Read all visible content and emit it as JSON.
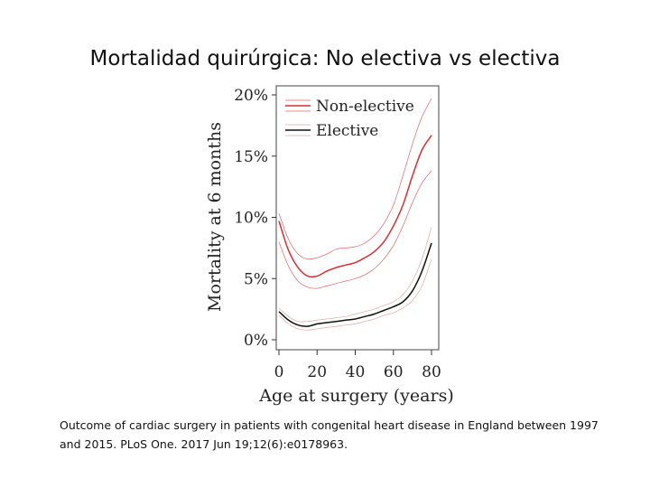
{
  "slide": {
    "title": "Mortalidad quirúrgica: No electiva vs electiva",
    "caption_line1": "Outcome of cardiac surgery in patients with congenital heart disease in England between 1997",
    "caption_line2": "and 2015. PLoS One. 2017 Jun 19;12(6):e0178963."
  },
  "chart_data": {
    "type": "line",
    "title": "",
    "xlabel": "Age at surgery (years)",
    "ylabel": "Mortality at 6 months",
    "xlim": [
      0,
      82
    ],
    "ylim": [
      0,
      20
    ],
    "xticks": [
      0,
      20,
      40,
      60,
      80
    ],
    "yticks": [
      0,
      5,
      10,
      15,
      20
    ],
    "ytick_labels": [
      "0%",
      "5%",
      "10%",
      "15%",
      "20%"
    ],
    "legend": {
      "position": "top-left",
      "labels": [
        "Non-elective",
        "Elective"
      ]
    },
    "series": [
      {
        "name": "Non-elective",
        "color": "#d93030",
        "x": [
          0,
          5,
          10,
          15,
          20,
          25,
          30,
          35,
          40,
          45,
          50,
          55,
          60,
          65,
          70,
          75,
          80
        ],
        "values": [
          9.7,
          7.3,
          5.9,
          5.2,
          5.2,
          5.6,
          5.9,
          6.1,
          6.3,
          6.7,
          7.2,
          8.0,
          9.3,
          11.0,
          13.4,
          15.5,
          16.7
        ],
        "lower": [
          8.0,
          6.0,
          4.8,
          4.3,
          4.2,
          4.4,
          4.6,
          4.8,
          5.0,
          5.3,
          5.8,
          6.6,
          7.7,
          9.3,
          11.2,
          12.8,
          13.8
        ],
        "upper": [
          10.3,
          8.2,
          7.0,
          6.6,
          6.7,
          7.0,
          7.4,
          7.5,
          7.6,
          7.9,
          8.5,
          9.5,
          11.0,
          13.4,
          16.0,
          18.2,
          19.7
        ]
      },
      {
        "name": "Elective",
        "color": "#111111",
        "band_color": "#d98a8a",
        "x": [
          0,
          5,
          10,
          15,
          20,
          25,
          30,
          35,
          40,
          45,
          50,
          55,
          60,
          65,
          70,
          75,
          80
        ],
        "values": [
          2.3,
          1.6,
          1.2,
          1.1,
          1.3,
          1.4,
          1.5,
          1.6,
          1.7,
          1.9,
          2.1,
          2.4,
          2.7,
          3.1,
          4.0,
          5.6,
          7.9
        ],
        "lower": [
          2.0,
          1.3,
          0.9,
          0.8,
          0.9,
          1.0,
          1.1,
          1.2,
          1.3,
          1.5,
          1.7,
          2.0,
          2.2,
          2.6,
          3.2,
          4.4,
          6.6
        ],
        "upper": [
          2.6,
          1.9,
          1.5,
          1.5,
          1.6,
          1.7,
          1.8,
          1.9,
          2.1,
          2.3,
          2.5,
          2.8,
          3.1,
          3.7,
          4.8,
          6.6,
          9.2
        ]
      }
    ]
  }
}
